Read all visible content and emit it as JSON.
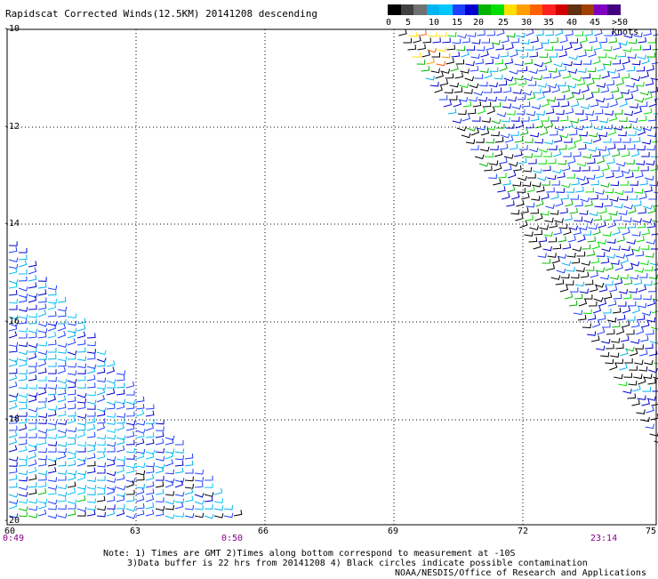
{
  "title": "Rapidscat Corrected Winds(12.5KM) 20141208 descending",
  "legend": {
    "colors": [
      "#000000",
      "#404040",
      "#707070",
      "#00b4f0",
      "#00c8ff",
      "#2040ff",
      "#0000d0",
      "#00b400",
      "#00e000",
      "#ffe000",
      "#ffa000",
      "#ff6000",
      "#ff2020",
      "#d00000",
      "#603010",
      "#a04000",
      "#8000c0",
      "#400080"
    ],
    "labels": [
      "0",
      "5",
      "10",
      "15",
      "20",
      "25",
      "30",
      "35",
      "40",
      "45",
      ">50 knots"
    ]
  },
  "lat_labels": [
    "-10",
    "-12",
    "-14",
    "-16",
    "-18",
    "-20"
  ],
  "lon_labels": [
    "60",
    "63",
    "66",
    "69",
    "72",
    "75"
  ],
  "time_labels": [
    "0:49",
    "0:50",
    "23:14"
  ],
  "notes": {
    "line1": "Note: 1) Times are GMT 2)Times along bottom correspond to measurement at -10S",
    "line2": "3)Data buffer is 22 hrs from 20141208 4) Black circles indicate possible contamination",
    "credit": "NOAA/NESDIS/Office of Research and Applications"
  }
}
